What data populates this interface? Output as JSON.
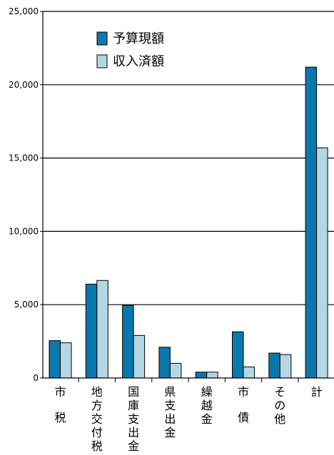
{
  "chart_data": {
    "type": "bar",
    "categories": [
      "市税",
      "地方交付税",
      "国庫支出金",
      "県支出金",
      "繰越金",
      "市債",
      "その他",
      "計"
    ],
    "category_lines": [
      [
        "市",
        "税"
      ],
      [
        "地",
        "方",
        "交",
        "付",
        "税"
      ],
      [
        "国",
        "庫",
        "支",
        "出",
        "金"
      ],
      [
        "県",
        "支",
        "出",
        "金"
      ],
      [
        "繰",
        "越",
        "金"
      ],
      [
        "市",
        "債"
      ],
      [
        "そ",
        "の",
        "他"
      ],
      [
        "計"
      ]
    ],
    "series": [
      {
        "name": "予算現額",
        "values": [
          2550,
          6400,
          4950,
          2100,
          400,
          3150,
          1700,
          21200
        ],
        "color": "#0a78ad"
      },
      {
        "name": "収入済額",
        "values": [
          2400,
          6650,
          2900,
          1000,
          400,
          750,
          1600,
          15700
        ],
        "color": "#b4d7e4"
      }
    ],
    "ylim": [
      0,
      25000
    ],
    "yticks": [
      "0",
      "5,000",
      "10,000",
      "15,000",
      "20,000",
      "25,000"
    ],
    "grid": true,
    "legend_position": "top-left"
  }
}
